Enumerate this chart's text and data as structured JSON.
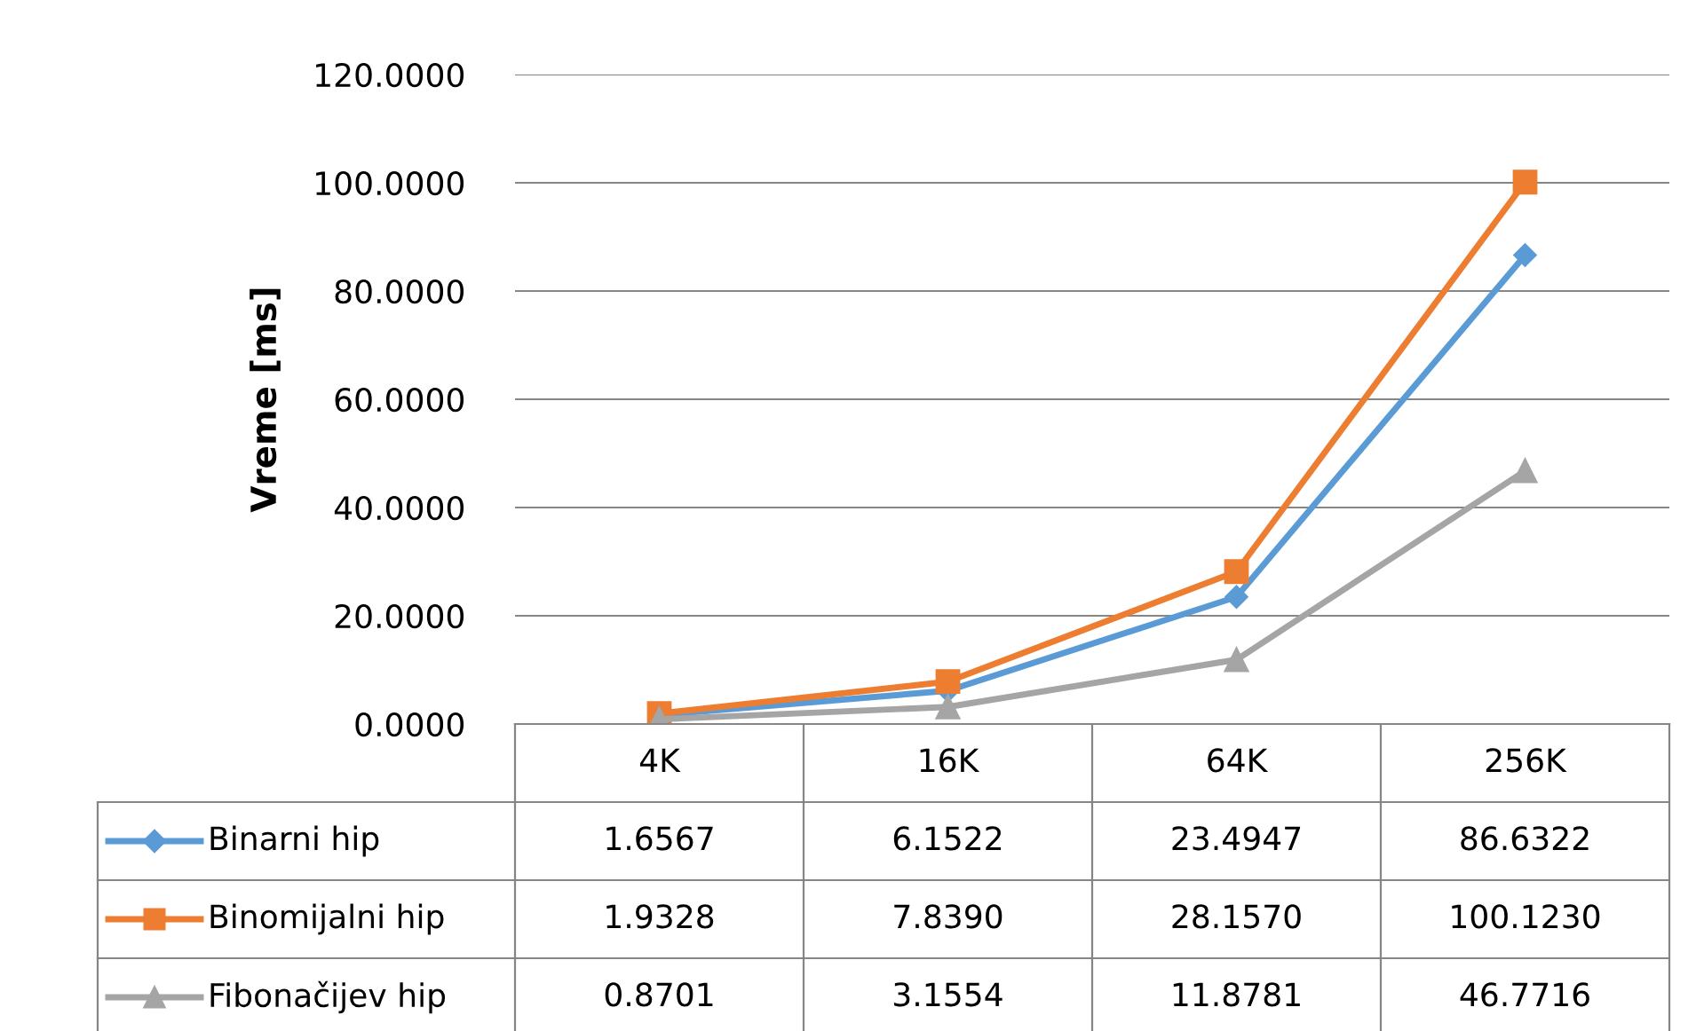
{
  "chart_data": {
    "type": "line",
    "ylabel": "Vreme [ms]",
    "categories": [
      "4K",
      "16K",
      "64K",
      "256K"
    ],
    "series": [
      {
        "name": "Binarni hip",
        "color": "#5b9bd5",
        "marker": "diamond",
        "values": [
          1.6567,
          6.1522,
          23.4947,
          86.6322
        ],
        "value_labels": [
          "1.6567",
          "6.1522",
          "23.4947",
          "86.6322"
        ]
      },
      {
        "name": "Binomijalni hip",
        "color": "#ed7d31",
        "marker": "square",
        "values": [
          1.9328,
          7.839,
          28.157,
          100.123
        ],
        "value_labels": [
          "1.9328",
          "7.8390",
          "28.1570",
          "100.1230"
        ]
      },
      {
        "name": "Fibonačijev hip",
        "color": "#a5a5a5",
        "marker": "triangle",
        "values": [
          0.8701,
          3.1554,
          11.8781,
          46.7716
        ],
        "value_labels": [
          "0.8701",
          "3.1554",
          "11.8781",
          "46.7716"
        ]
      }
    ],
    "ylim": [
      0,
      120
    ],
    "yticks": [
      {
        "value": 0,
        "label": "0.0000"
      },
      {
        "value": 20,
        "label": "20.0000"
      },
      {
        "value": 40,
        "label": "40.0000"
      },
      {
        "value": 60,
        "label": "60.0000"
      },
      {
        "value": 80,
        "label": "80.0000"
      },
      {
        "value": 100,
        "label": "100.0000"
      },
      {
        "value": 120,
        "label": "120.0000"
      }
    ],
    "grid": "y",
    "legend": "bottom",
    "line_style": "solid"
  }
}
